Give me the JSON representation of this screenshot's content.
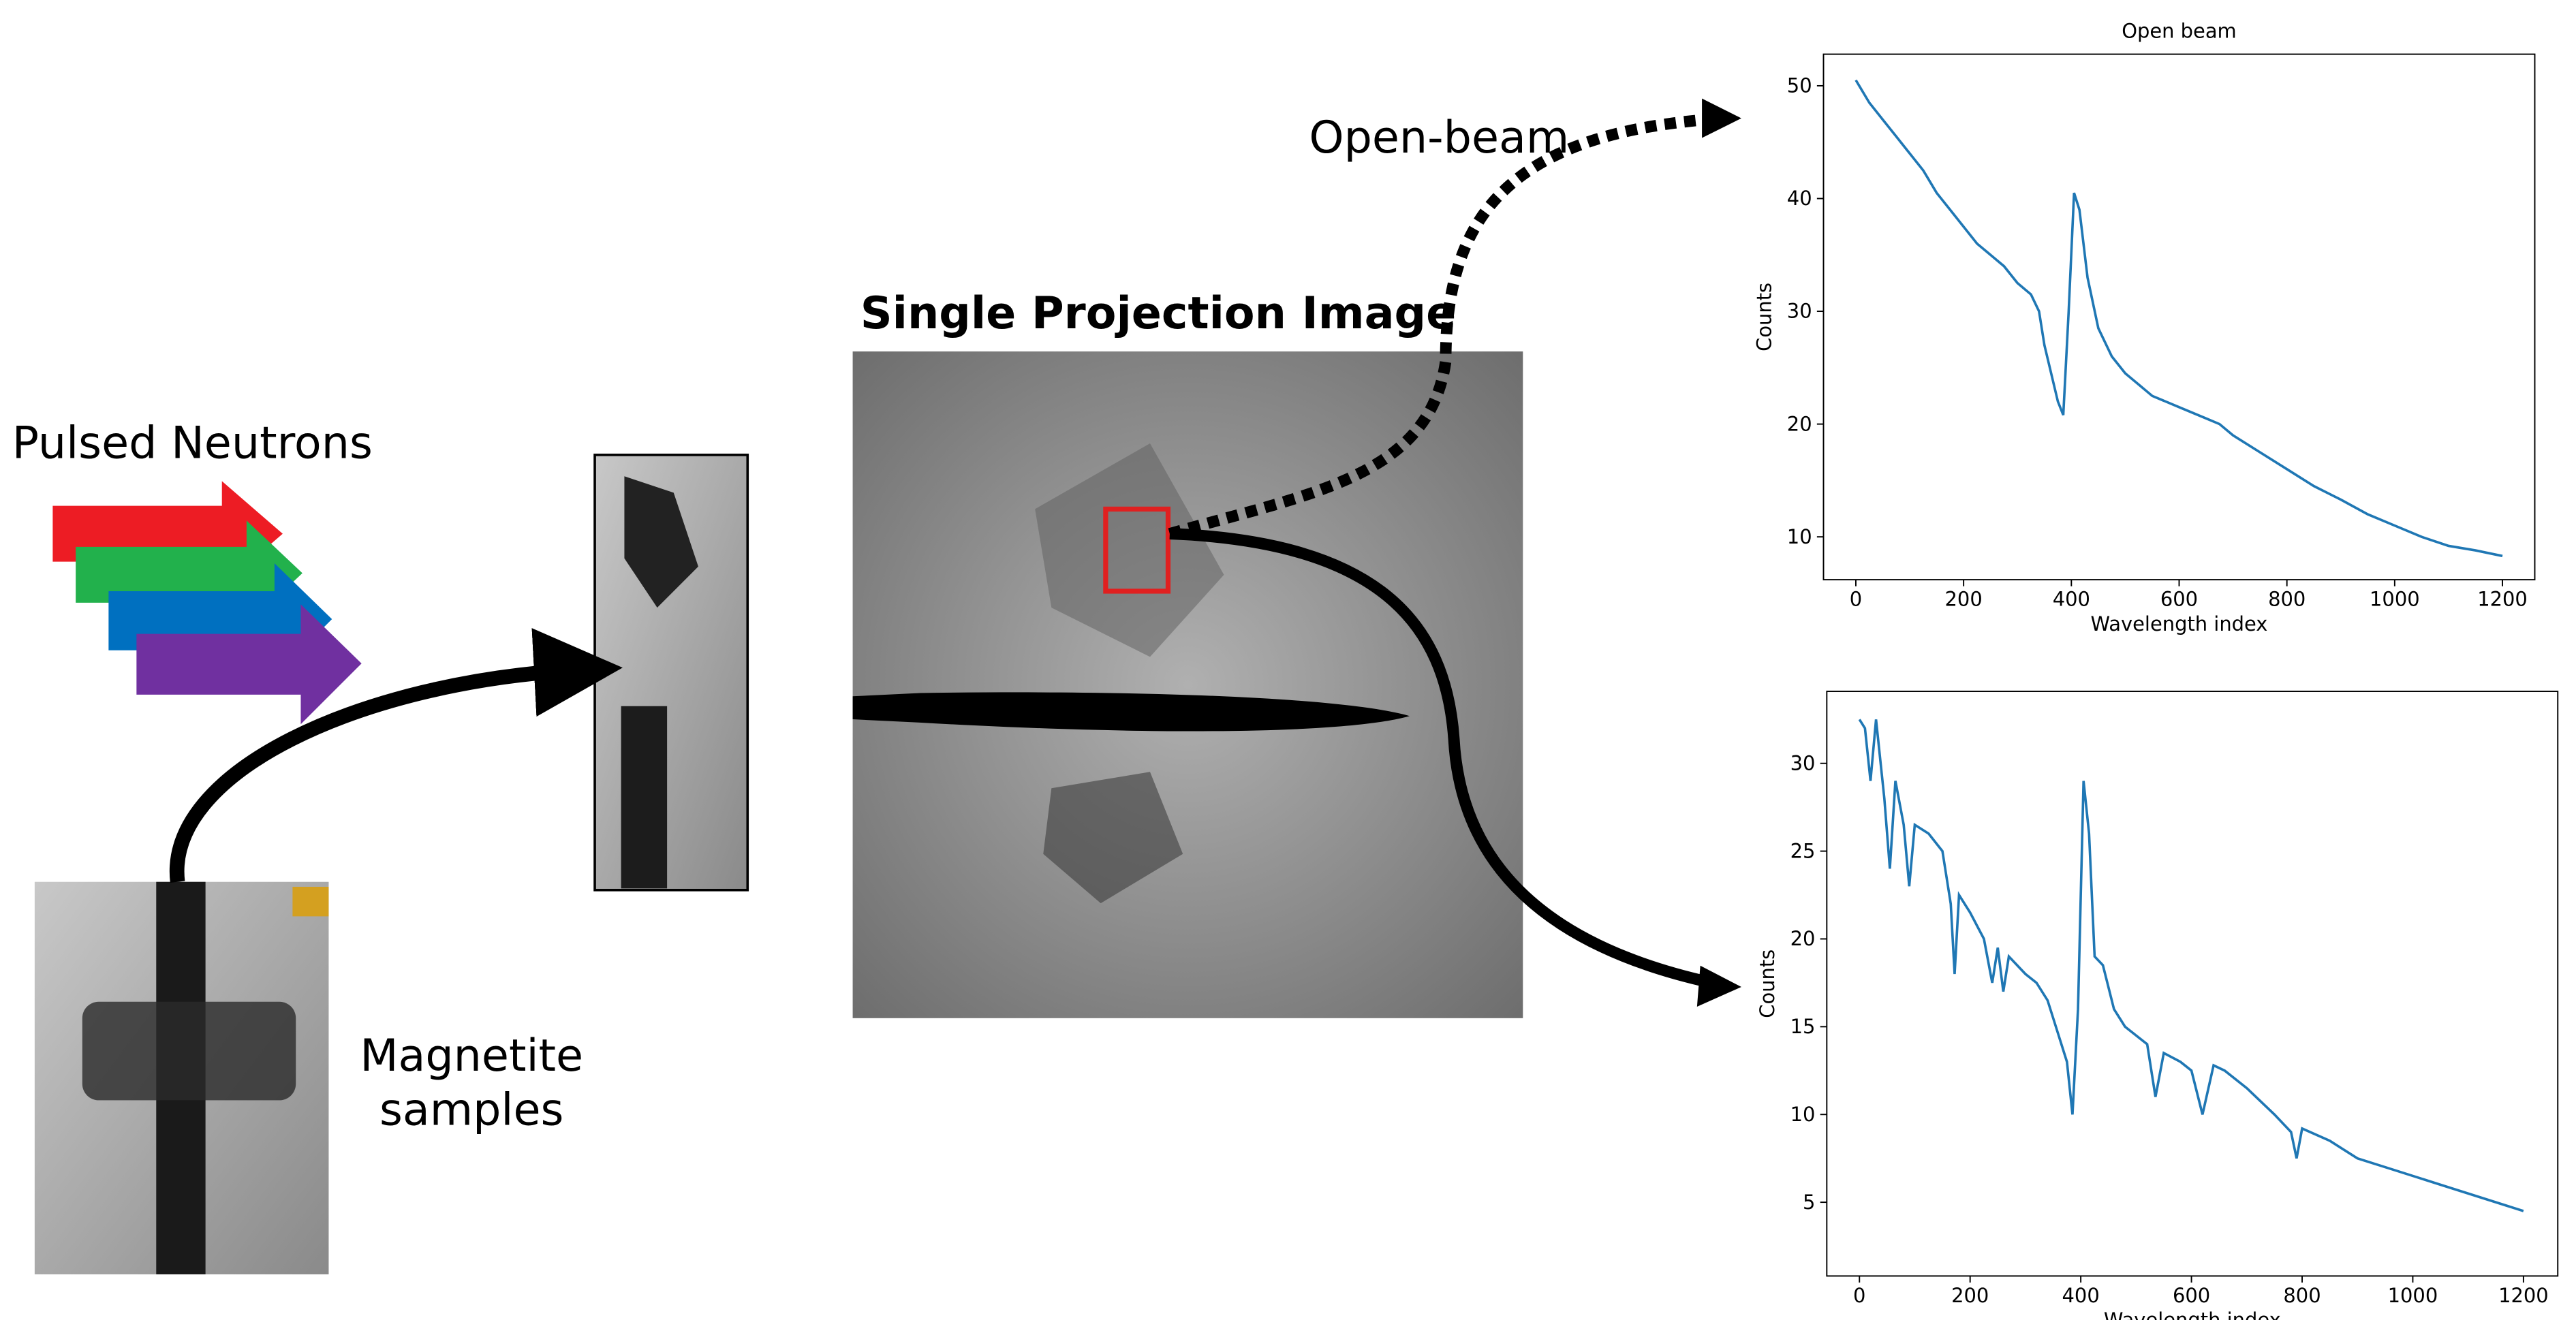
{
  "labels": {
    "pulsed_neutrons": "Pulsed Neutrons",
    "magnetite": "Magnetite",
    "samples": "samples",
    "projection_title": "Single Projection Image",
    "open_beam_arrow": "Open-beam"
  },
  "chart_data": [
    {
      "type": "line",
      "title": "Open beam",
      "x_label": "Wavelength index",
      "y_label": "Counts",
      "color": "#1f77b4",
      "x": [
        0,
        25,
        50,
        75,
        100,
        125,
        150,
        175,
        200,
        225,
        250,
        275,
        300,
        325,
        340,
        350,
        375,
        385,
        395,
        405,
        415,
        430,
        450,
        475,
        500,
        525,
        550,
        575,
        600,
        625,
        650,
        675,
        700,
        750,
        800,
        850,
        900,
        950,
        1000,
        1050,
        1100,
        1150,
        1200
      ],
      "values": [
        50.5,
        48.5,
        47,
        45.5,
        44,
        42.5,
        40.5,
        39,
        37.5,
        36,
        35,
        34,
        32.5,
        31.5,
        30,
        27,
        22,
        20.8,
        30,
        40.5,
        39,
        33,
        28.5,
        26,
        24.5,
        23.5,
        22.5,
        22,
        21.5,
        21,
        20.5,
        20,
        19,
        17.5,
        16,
        14.5,
        13.3,
        12,
        11,
        10,
        9.2,
        8.8,
        8.3
      ],
      "xlim": [
        -60,
        1260
      ],
      "ylim": [
        6.2,
        52.8
      ],
      "xticks": [
        0,
        200,
        400,
        600,
        800,
        1000,
        1200
      ],
      "yticks": [
        10,
        20,
        30,
        40,
        50
      ]
    },
    {
      "type": "line",
      "x_label": "Wavelength index",
      "y_label": "Counts",
      "color": "#1f77b4",
      "x": [
        0,
        10,
        20,
        30,
        45,
        55,
        65,
        80,
        90,
        100,
        125,
        150,
        165,
        172,
        180,
        200,
        225,
        240,
        250,
        260,
        270,
        300,
        320,
        340,
        360,
        375,
        385,
        395,
        405,
        415,
        425,
        440,
        460,
        480,
        500,
        520,
        535,
        550,
        580,
        600,
        620,
        640,
        660,
        700,
        750,
        780,
        790,
        800,
        850,
        900,
        950,
        1000,
        1050,
        1100,
        1150,
        1200
      ],
      "values": [
        32.5,
        32,
        29,
        32.5,
        28,
        24,
        29,
        26.5,
        23,
        26.5,
        26,
        25,
        22,
        18,
        22.5,
        21.5,
        20,
        17.5,
        19.5,
        17,
        19,
        18,
        17.5,
        16.5,
        14.5,
        13,
        10,
        16,
        29,
        26,
        19,
        18.5,
        16,
        15,
        14.5,
        14,
        11,
        13.5,
        13,
        12.5,
        10,
        12.8,
        12.5,
        11.5,
        10,
        9,
        7.5,
        9.2,
        8.5,
        7.5,
        7,
        6.5,
        6,
        5.5,
        5,
        4.5
      ],
      "xlim": [
        -59,
        1262
      ],
      "ylim": [
        0.8,
        34.1
      ],
      "xticks": [
        0,
        200,
        400,
        600,
        800,
        1000,
        1200
      ],
      "yticks": [
        5,
        10,
        15,
        20,
        25,
        30
      ]
    }
  ]
}
